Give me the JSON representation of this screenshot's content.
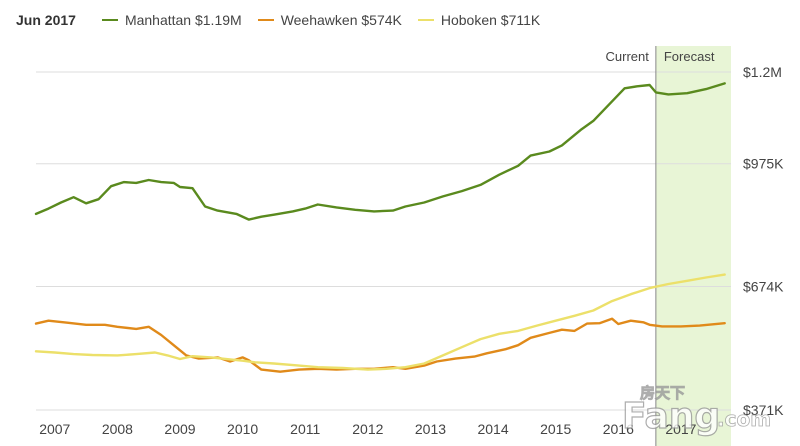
{
  "legend": {
    "date": "Jun 2017",
    "items": [
      {
        "label": "Manhattan $1.19M",
        "color": "#5a8a1e"
      },
      {
        "label": "Weehawken $574K",
        "color": "#e08a1a"
      },
      {
        "label": "Hoboken $711K",
        "color": "#ece06a"
      }
    ]
  },
  "phases": {
    "current": "Current",
    "forecast": "Forecast"
  },
  "watermark": {
    "brand": "Fang",
    "cn": "房天下",
    "dotcom": ".com"
  },
  "colors": {
    "forecast_band": "#e8f5d6",
    "divider": "#888888",
    "grid": "#dddddd"
  },
  "chart_data": {
    "type": "line",
    "xlim": [
      2006.7,
      2017.8
    ],
    "ylim": [
      371,
      1200
    ],
    "forecast_start": 2016.6,
    "x_ticks": [
      {
        "value": 2007,
        "label": "2007"
      },
      {
        "value": 2008,
        "label": "2008"
      },
      {
        "value": 2009,
        "label": "2009"
      },
      {
        "value": 2010,
        "label": "2010"
      },
      {
        "value": 2011,
        "label": "2011"
      },
      {
        "value": 2012,
        "label": "2012"
      },
      {
        "value": 2013,
        "label": "2013"
      },
      {
        "value": 2014,
        "label": "2014"
      },
      {
        "value": 2015,
        "label": "2015"
      },
      {
        "value": 2016,
        "label": "2016"
      },
      {
        "value": 2017,
        "label": "2017"
      }
    ],
    "y_ticks": [
      {
        "value": 1200,
        "label": "$1.2M"
      },
      {
        "value": 975,
        "label": "$975K"
      },
      {
        "value": 674,
        "label": "$674K"
      },
      {
        "value": 371,
        "label": "$371K"
      }
    ],
    "series": [
      {
        "name": "Manhattan $1.19M",
        "color": "#5a8a1e",
        "points": [
          [
            2006.7,
            852
          ],
          [
            2006.9,
            865
          ],
          [
            2007.1,
            880
          ],
          [
            2007.3,
            893
          ],
          [
            2007.5,
            878
          ],
          [
            2007.7,
            888
          ],
          [
            2007.9,
            920
          ],
          [
            2008.1,
            930
          ],
          [
            2008.3,
            928
          ],
          [
            2008.5,
            935
          ],
          [
            2008.7,
            930
          ],
          [
            2008.9,
            928
          ],
          [
            2009.0,
            918
          ],
          [
            2009.2,
            915
          ],
          [
            2009.4,
            870
          ],
          [
            2009.6,
            860
          ],
          [
            2009.9,
            852
          ],
          [
            2010.1,
            838
          ],
          [
            2010.3,
            845
          ],
          [
            2010.5,
            850
          ],
          [
            2010.8,
            858
          ],
          [
            2011.0,
            865
          ],
          [
            2011.2,
            875
          ],
          [
            2011.5,
            868
          ],
          [
            2011.8,
            862
          ],
          [
            2012.1,
            858
          ],
          [
            2012.4,
            860
          ],
          [
            2012.6,
            870
          ],
          [
            2012.9,
            880
          ],
          [
            2013.2,
            895
          ],
          [
            2013.5,
            908
          ],
          [
            2013.8,
            923
          ],
          [
            2014.1,
            948
          ],
          [
            2014.4,
            970
          ],
          [
            2014.6,
            995
          ],
          [
            2014.9,
            1005
          ],
          [
            2015.1,
            1020
          ],
          [
            2015.4,
            1058
          ],
          [
            2015.6,
            1080
          ],
          [
            2015.9,
            1128
          ],
          [
            2016.1,
            1160
          ],
          [
            2016.3,
            1165
          ],
          [
            2016.5,
            1168
          ],
          [
            2016.6,
            1150
          ],
          [
            2016.8,
            1145
          ],
          [
            2017.1,
            1148
          ],
          [
            2017.4,
            1158
          ],
          [
            2017.7,
            1172
          ]
        ]
      },
      {
        "name": "Weehawken $574K",
        "color": "#e08a1a",
        "points": [
          [
            2006.7,
            583
          ],
          [
            2006.9,
            590
          ],
          [
            2007.2,
            585
          ],
          [
            2007.5,
            580
          ],
          [
            2007.8,
            580
          ],
          [
            2008.0,
            575
          ],
          [
            2008.3,
            570
          ],
          [
            2008.5,
            575
          ],
          [
            2008.7,
            555
          ],
          [
            2008.9,
            530
          ],
          [
            2009.1,
            505
          ],
          [
            2009.3,
            497
          ],
          [
            2009.6,
            500
          ],
          [
            2009.8,
            490
          ],
          [
            2010.0,
            500
          ],
          [
            2010.1,
            493
          ],
          [
            2010.3,
            470
          ],
          [
            2010.6,
            465
          ],
          [
            2010.9,
            470
          ],
          [
            2011.2,
            472
          ],
          [
            2011.5,
            470
          ],
          [
            2011.8,
            472
          ],
          [
            2012.1,
            472
          ],
          [
            2012.4,
            476
          ],
          [
            2012.6,
            472
          ],
          [
            2012.9,
            480
          ],
          [
            2013.1,
            490
          ],
          [
            2013.4,
            497
          ],
          [
            2013.7,
            502
          ],
          [
            2013.9,
            510
          ],
          [
            2014.2,
            520
          ],
          [
            2014.4,
            530
          ],
          [
            2014.6,
            548
          ],
          [
            2014.9,
            560
          ],
          [
            2015.1,
            568
          ],
          [
            2015.3,
            565
          ],
          [
            2015.5,
            583
          ],
          [
            2015.7,
            584
          ],
          [
            2015.9,
            595
          ],
          [
            2016.0,
            582
          ],
          [
            2016.2,
            590
          ],
          [
            2016.4,
            586
          ],
          [
            2016.5,
            580
          ],
          [
            2016.7,
            576
          ],
          [
            2017.0,
            576
          ],
          [
            2017.3,
            578
          ],
          [
            2017.7,
            584
          ]
        ]
      },
      {
        "name": "Hoboken $711K",
        "color": "#ece06a",
        "points": [
          [
            2006.7,
            515
          ],
          [
            2007.0,
            512
          ],
          [
            2007.3,
            508
          ],
          [
            2007.6,
            506
          ],
          [
            2008.0,
            505
          ],
          [
            2008.3,
            508
          ],
          [
            2008.6,
            512
          ],
          [
            2008.8,
            505
          ],
          [
            2009.0,
            496
          ],
          [
            2009.2,
            503
          ],
          [
            2009.5,
            500
          ],
          [
            2009.8,
            495
          ],
          [
            2010.0,
            492
          ],
          [
            2010.2,
            488
          ],
          [
            2010.5,
            485
          ],
          [
            2010.9,
            480
          ],
          [
            2011.2,
            476
          ],
          [
            2011.6,
            474
          ],
          [
            2012.0,
            470
          ],
          [
            2012.3,
            472
          ],
          [
            2012.6,
            476
          ],
          [
            2012.9,
            485
          ],
          [
            2013.2,
            505
          ],
          [
            2013.5,
            525
          ],
          [
            2013.8,
            545
          ],
          [
            2014.1,
            558
          ],
          [
            2014.4,
            565
          ],
          [
            2014.7,
            578
          ],
          [
            2015.0,
            590
          ],
          [
            2015.3,
            602
          ],
          [
            2015.6,
            615
          ],
          [
            2015.9,
            638
          ],
          [
            2016.2,
            655
          ],
          [
            2016.5,
            670
          ],
          [
            2016.8,
            680
          ],
          [
            2017.1,
            688
          ],
          [
            2017.4,
            696
          ],
          [
            2017.7,
            703
          ]
        ]
      }
    ]
  }
}
